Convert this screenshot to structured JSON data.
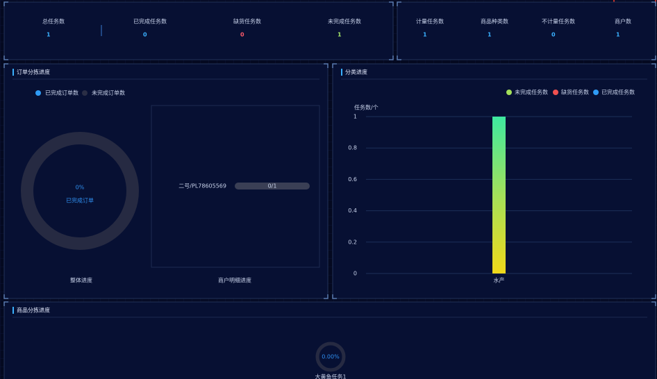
{
  "stats_left": [
    {
      "label": "总任务数",
      "value": 1,
      "color": "#3ab0ff"
    },
    {
      "label": "已完成任务数",
      "value": 0,
      "color": "#3ab0ff"
    },
    {
      "label": "缺货任务数",
      "value": 0,
      "color": "#ff5a6a"
    },
    {
      "label": "未完成任务数",
      "value": 1,
      "color": "#a6e86a"
    }
  ],
  "stats_right": [
    {
      "label": "计量任务数",
      "value": 1,
      "color": "#3ab0ff"
    },
    {
      "label": "商品种类数",
      "value": 1,
      "color": "#3ab0ff"
    },
    {
      "label": "不计量任务数",
      "value": 0,
      "color": "#3ab0ff"
    },
    {
      "label": "商户数",
      "value": 1,
      "color": "#3ab0ff"
    }
  ],
  "order_progress": {
    "title": "订单分拣进度",
    "legend": [
      "已完成订单数",
      "未完成订单数"
    ],
    "percent_label": "0%",
    "center_caption": "已完成订单",
    "caption_left": "整体进度",
    "caption_right": "商户明细进度",
    "merchant": {
      "name": "二号/PL78605569",
      "progress_label": "0/1"
    }
  },
  "category_progress": {
    "title": "分类进度",
    "chart": {
      "type": "bar",
      "y_label": "任务数/个",
      "categories": [
        "水产"
      ],
      "series": [
        {
          "name": "未完成任务数",
          "color": "#a3e05a",
          "values": [
            1
          ]
        },
        {
          "name": "缺货任务数",
          "color": "#f05050",
          "values": [
            0
          ]
        },
        {
          "name": "已完成任务数",
          "color": "#2f9bf5",
          "values": [
            0
          ]
        }
      ],
      "ylim": [
        0,
        1
      ],
      "yticks": [
        0,
        0.2,
        0.4,
        0.6,
        0.8,
        1
      ]
    }
  },
  "goods_progress": {
    "title": "商品分拣进度",
    "items": [
      {
        "percent_label": "0.00%",
        "name": "大黄鱼任务1"
      }
    ]
  }
}
